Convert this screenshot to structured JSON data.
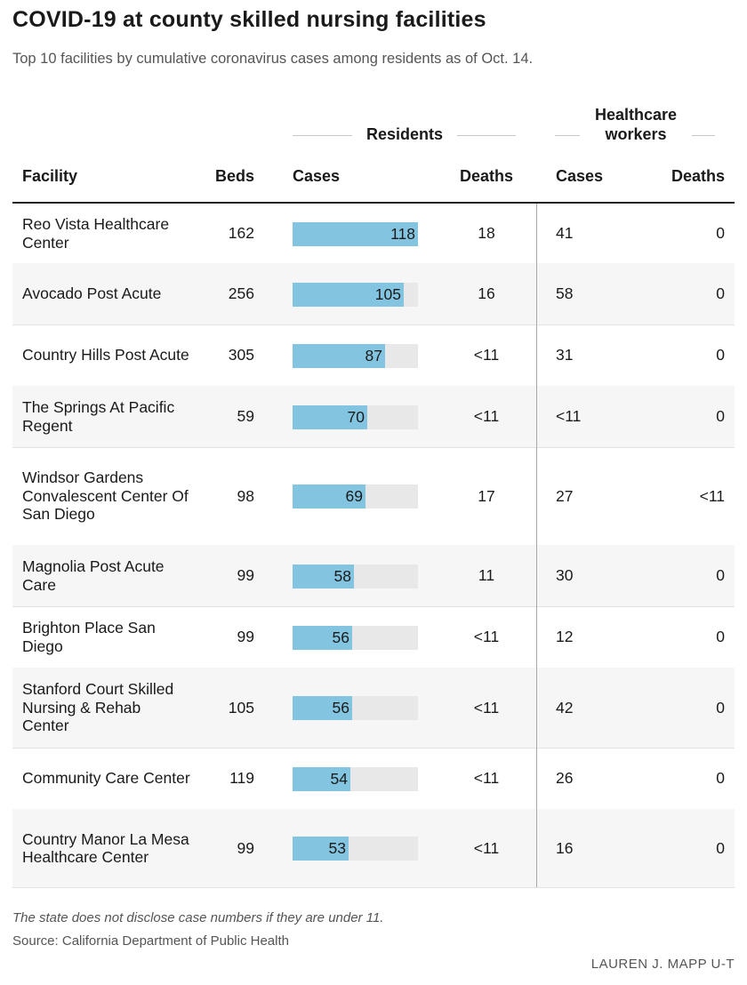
{
  "title": "COVID-19 at county skilled nursing facilities",
  "subtitle": "Top 10 facilities by cumulative coronavirus cases among residents as of Oct. 14.",
  "groups": {
    "residents": "Residents",
    "workers_line1": "Healthcare",
    "workers_line2": "workers"
  },
  "columns": {
    "facility": "Facility",
    "beds": "Beds",
    "resident_cases": "Cases",
    "resident_deaths": "Deaths",
    "worker_cases": "Cases",
    "worker_deaths": "Deaths"
  },
  "colors": {
    "bar": "#83c5e0",
    "track": "#e8e8e8"
  },
  "chart_data": {
    "type": "table",
    "title": "COVID-19 at county skilled nursing facilities",
    "bar_column": "Residents Cases",
    "bar_max": 118,
    "rows": [
      {
        "facility": "Reo Vista Healthcare Center",
        "beds": 162,
        "resident_cases": 118,
        "resident_deaths": "18",
        "worker_cases": "41",
        "worker_deaths": "0"
      },
      {
        "facility": "Avocado Post Acute",
        "beds": 256,
        "resident_cases": 105,
        "resident_deaths": "16",
        "worker_cases": "58",
        "worker_deaths": "0"
      },
      {
        "facility": "Country Hills Post Acute",
        "beds": 305,
        "resident_cases": 87,
        "resident_deaths": "<11",
        "worker_cases": "31",
        "worker_deaths": "0"
      },
      {
        "facility": "The Springs At Pacific Regent",
        "beds": 59,
        "resident_cases": 70,
        "resident_deaths": "<11",
        "worker_cases": "<11",
        "worker_deaths": "0"
      },
      {
        "facility": "Windsor Gardens Convalescent Center Of San Diego",
        "beds": 98,
        "resident_cases": 69,
        "resident_deaths": "17",
        "worker_cases": "27",
        "worker_deaths": "<11"
      },
      {
        "facility": "Magnolia Post Acute Care",
        "beds": 99,
        "resident_cases": 58,
        "resident_deaths": "11",
        "worker_cases": "30",
        "worker_deaths": "0"
      },
      {
        "facility": "Brighton Place San Diego",
        "beds": 99,
        "resident_cases": 56,
        "resident_deaths": "<11",
        "worker_cases": "12",
        "worker_deaths": "0"
      },
      {
        "facility": "Stanford Court Skilled Nursing & Rehab Center",
        "beds": 105,
        "resident_cases": 56,
        "resident_deaths": "<11",
        "worker_cases": "42",
        "worker_deaths": "0"
      },
      {
        "facility": "Community Care Center",
        "beds": 119,
        "resident_cases": 54,
        "resident_deaths": "<11",
        "worker_cases": "26",
        "worker_deaths": "0"
      },
      {
        "facility": "Country Manor La Mesa Healthcare Center",
        "beds": 99,
        "resident_cases": 53,
        "resident_deaths": "<11",
        "worker_cases": "16",
        "worker_deaths": "0"
      }
    ]
  },
  "footer": {
    "note": "The state does not disclose case numbers if they are under 11.",
    "source": "Source: California Department of Public Health",
    "credit": "LAUREN J. MAPP U-T"
  }
}
